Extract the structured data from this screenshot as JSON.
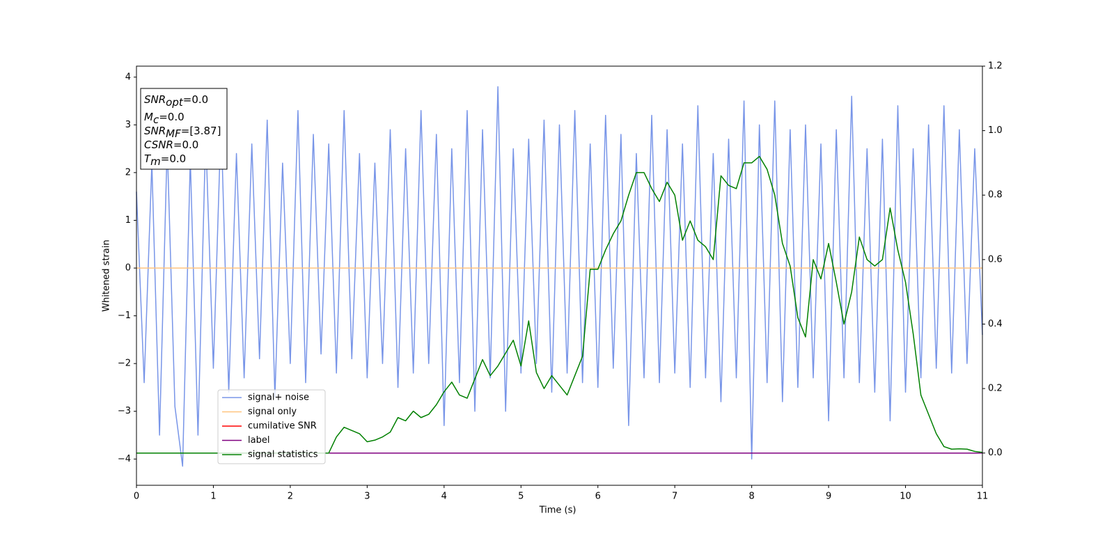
{
  "chart_data": {
    "type": "line",
    "xlabel": "Time (s)",
    "ylabel": "Whitened strain",
    "xlim": [
      0,
      11
    ],
    "ylim": [
      -4.55,
      4.23
    ],
    "y2lim": [
      -0.1,
      1.2
    ],
    "xticks": [
      0,
      1,
      2,
      3,
      4,
      5,
      6,
      7,
      8,
      9,
      10,
      11
    ],
    "yticks": [
      {
        "value": -4,
        "label": "−4"
      },
      {
        "value": -3,
        "label": "−3"
      },
      {
        "value": -2,
        "label": "−2"
      },
      {
        "value": -1,
        "label": "−1"
      },
      0,
      1,
      2,
      3,
      4
    ],
    "y2ticks": [
      {
        "value": 0,
        "label": "0.0"
      },
      {
        "value": 0.2,
        "label": "0.2"
      },
      {
        "value": 0.4,
        "label": "0.4"
      },
      {
        "value": 0.6,
        "label": "0.6"
      },
      {
        "value": 0.8,
        "label": "0.8"
      },
      {
        "value": 1,
        "label": "1.0"
      },
      {
        "value": 1.2,
        "label": "1.2"
      }
    ],
    "legend": "lower left",
    "annotation": [
      {
        "symbol": "SNR",
        "subscript": "opt",
        "text": "=0.0"
      },
      {
        "symbol": "M",
        "subscript": "c",
        "text": "=0.0"
      },
      {
        "symbol": "SNR",
        "subscript": "MF",
        "text": "=[3.87]"
      },
      {
        "symbol": "CSNR",
        "text": "=0.0"
      },
      {
        "symbol": "T",
        "subscript": "m",
        "text": "=0.0"
      }
    ],
    "x": [
      0,
      0.1,
      0.2,
      0.3,
      0.4,
      0.5,
      0.6,
      0.7,
      0.8,
      0.9,
      1,
      1.1,
      1.2,
      1.3,
      1.4,
      1.5,
      1.6,
      1.7,
      1.8,
      1.9,
      2,
      2.1,
      2.2,
      2.3,
      2.4,
      2.5,
      2.6,
      2.7,
      2.8,
      2.9,
      3,
      3.1,
      3.2,
      3.3,
      3.4,
      3.5,
      3.6,
      3.7,
      3.8,
      3.9,
      4,
      4.1,
      4.2,
      4.3,
      4.4,
      4.5,
      4.6,
      4.7,
      4.8,
      4.9,
      5,
      5.1,
      5.2,
      5.3,
      5.4,
      5.5,
      5.6,
      5.7,
      5.8,
      5.9,
      6,
      6.1,
      6.2,
      6.3,
      6.4,
      6.5,
      6.6,
      6.7,
      6.8,
      6.9,
      7,
      7.1,
      7.2,
      7.3,
      7.4,
      7.5,
      7.6,
      7.7,
      7.8,
      7.9,
      8,
      8.1,
      8.2,
      8.3,
      8.4,
      8.5,
      8.6,
      8.7,
      8.8,
      8.9,
      9,
      9.1,
      9.2,
      9.3,
      9.4,
      9.5,
      9.6,
      9.7,
      9.8,
      9.9,
      10,
      10.1,
      10.2,
      10.3,
      10.4,
      10.5,
      10.6,
      10.7,
      10.8,
      10.9,
      11
    ],
    "series": [
      {
        "name": "signal+ noise",
        "color": "#7895e8",
        "values": [
          1.6,
          -2.4,
          2.2,
          -3.5,
          2.6,
          -2.9,
          -4.15,
          2.3,
          -3.5,
          2.8,
          -2.1,
          3.1,
          -2.6,
          2.4,
          -2.3,
          2.6,
          -1.9,
          3.1,
          -2.7,
          2.2,
          -2.0,
          3.3,
          -2.4,
          2.8,
          -1.8,
          2.6,
          -2.2,
          3.3,
          -1.9,
          2.4,
          -2.3,
          2.2,
          -2.0,
          2.9,
          -2.5,
          2.5,
          -2.2,
          3.3,
          -2.0,
          2.8,
          -3.3,
          2.5,
          -2.4,
          3.3,
          -3.0,
          2.9,
          -2.3,
          3.8,
          -3.0,
          2.5,
          -2.2,
          2.7,
          -2.0,
          3.1,
          -2.6,
          3.0,
          -2.2,
          3.3,
          -2.4,
          2.6,
          -2.5,
          3.2,
          -2.1,
          2.8,
          -3.3,
          2.4,
          -2.3,
          3.2,
          -2.4,
          2.9,
          -2.2,
          2.6,
          -2.5,
          3.4,
          -2.3,
          2.4,
          -2.8,
          2.7,
          -2.3,
          3.5,
          -4.0,
          3.0,
          -2.4,
          3.5,
          -2.8,
          2.9,
          -2.5,
          3.0,
          -2.3,
          2.6,
          -3.2,
          2.9,
          -2.3,
          3.6,
          -2.4,
          2.5,
          -2.6,
          2.7,
          -3.2,
          3.4,
          -2.6,
          2.5,
          -2.3,
          3.0,
          -2.1,
          3.4,
          -2.2,
          2.9,
          -2.0,
          2.5,
          -1.4
        ]
      },
      {
        "name": "signal only",
        "color": "#ffc47f",
        "x": [
          0,
          11
        ],
        "values": [
          0,
          0
        ]
      },
      {
        "name": "cumilative SNR",
        "color": "#ff0000",
        "axis": "y2",
        "x": [
          0,
          11
        ],
        "values": [
          0,
          0
        ]
      },
      {
        "name": "label",
        "color": "#800080",
        "axis": "y2",
        "x": [
          0,
          11
        ],
        "values": [
          0,
          0
        ]
      },
      {
        "name": "signal statistics",
        "color": "#008000",
        "axis": "y2",
        "values": [
          0,
          0,
          0,
          0,
          0,
          0,
          0,
          0,
          0,
          0,
          0,
          0,
          0,
          0,
          0,
          0,
          0,
          0,
          0,
          0,
          0,
          0,
          0,
          0,
          0,
          0,
          0.05,
          0.08,
          0.07,
          0.06,
          0.035,
          0.04,
          0.05,
          0.065,
          0.11,
          0.1,
          0.13,
          0.11,
          0.12,
          0.15,
          0.19,
          0.22,
          0.18,
          0.17,
          0.23,
          0.29,
          0.24,
          0.27,
          0.31,
          0.35,
          0.27,
          0.41,
          0.25,
          0.2,
          0.24,
          0.21,
          0.18,
          0.24,
          0.3,
          0.57,
          0.57,
          0.63,
          0.68,
          0.72,
          0.8,
          0.87,
          0.87,
          0.82,
          0.78,
          0.84,
          0.8,
          0.66,
          0.72,
          0.66,
          0.64,
          0.6,
          0.86,
          0.83,
          0.82,
          0.9,
          0.9,
          0.92,
          0.88,
          0.8,
          0.65,
          0.58,
          0.42,
          0.36,
          0.6,
          0.54,
          0.65,
          0.53,
          0.4,
          0.5,
          0.67,
          0.6,
          0.58,
          0.6,
          0.76,
          0.63,
          0.53,
          0.37,
          0.18,
          0.12,
          0.06,
          0.02,
          0.012,
          0.013,
          0.012,
          0.005,
          0.002
        ]
      }
    ]
  }
}
